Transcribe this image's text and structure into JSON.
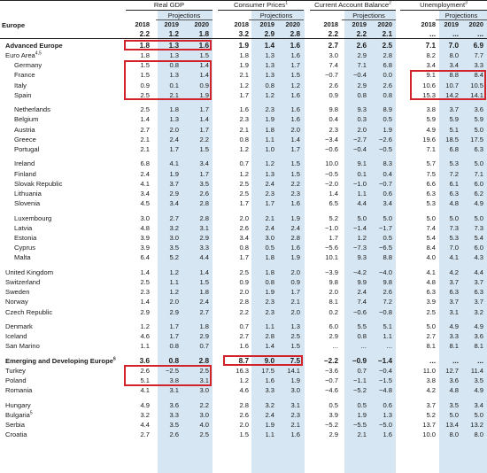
{
  "groups": [
    {
      "key": "gdp",
      "title": "Real GDP",
      "sup": ""
    },
    {
      "key": "cpi",
      "title": "Consumer Prices",
      "sup": "1"
    },
    {
      "key": "cab",
      "title": "Current Account Balance",
      "sup": "2"
    },
    {
      "key": "unemp",
      "title": "Unemployment",
      "sup": "3"
    }
  ],
  "projections_label": "Projections",
  "years": [
    "2018",
    "2019",
    "2020"
  ],
  "header_row": {
    "label": "Europe",
    "values": [
      "2.2",
      "1.2",
      "1.8",
      "3.2",
      "2.9",
      "2.8",
      "2.2",
      "2.2",
      "2.1",
      "...",
      "...",
      "..."
    ]
  },
  "rows": [
    {
      "label": "Advanced Europe",
      "sup": "",
      "bold": true,
      "indent": 0,
      "values": [
        "1.8",
        "1.3",
        "1.6",
        "1.9",
        "1.4",
        "1.6",
        "2.7",
        "2.6",
        "2.5",
        "7.1",
        "7.0",
        "6.9"
      ]
    },
    {
      "label": "Euro Area",
      "sup": "4,5",
      "indent": 0,
      "values": [
        "1.8",
        "1.3",
        "1.5",
        "1.8",
        "1.3",
        "1.6",
        "3.0",
        "2.9",
        "2.8",
        "8.2",
        "8.0",
        "7.7"
      ]
    },
    {
      "label": "Germany",
      "sup": "",
      "indent": 1,
      "values": [
        "1.5",
        "0.8",
        "1.4",
        "1.9",
        "1.3",
        "1.7",
        "7.4",
        "7.1",
        "6.8",
        "3.4",
        "3.4",
        "3.3"
      ]
    },
    {
      "label": "France",
      "sup": "",
      "indent": 1,
      "values": [
        "1.5",
        "1.3",
        "1.4",
        "2.1",
        "1.3",
        "1.5",
        "−0.7",
        "−0.4",
        "0.0",
        "9.1",
        "8.8",
        "8.4"
      ]
    },
    {
      "label": "Italy",
      "sup": "",
      "indent": 1,
      "values": [
        "0.9",
        "0.1",
        "0.9",
        "1.2",
        "0.8",
        "1.2",
        "2.6",
        "2.9",
        "2.6",
        "10.6",
        "10.7",
        "10.5"
      ]
    },
    {
      "label": "Spain",
      "sup": "",
      "indent": 1,
      "values": [
        "2.5",
        "2.1",
        "1.9",
        "1.7",
        "1.2",
        "1.6",
        "0.9",
        "0.8",
        "0.8",
        "15.3",
        "14.2",
        "14.1"
      ]
    },
    {
      "gap": true
    },
    {
      "label": "Netherlands",
      "sup": "",
      "indent": 1,
      "values": [
        "2.5",
        "1.8",
        "1.7",
        "1.6",
        "2.3",
        "1.6",
        "9.8",
        "9.3",
        "8.9",
        "3.8",
        "3.7",
        "3.6"
      ]
    },
    {
      "label": "Belgium",
      "sup": "",
      "indent": 1,
      "values": [
        "1.4",
        "1.3",
        "1.4",
        "2.3",
        "1.9",
        "1.6",
        "0.4",
        "0.3",
        "0.5",
        "5.9",
        "5.9",
        "5.9"
      ]
    },
    {
      "label": "Austria",
      "sup": "",
      "indent": 1,
      "values": [
        "2.7",
        "2.0",
        "1.7",
        "2.1",
        "1.8",
        "2.0",
        "2.3",
        "2.0",
        "1.9",
        "4.9",
        "5.1",
        "5.0"
      ]
    },
    {
      "label": "Greece",
      "sup": "",
      "indent": 1,
      "values": [
        "2.1",
        "2.4",
        "2.2",
        "0.8",
        "1.1",
        "1.4",
        "−3.4",
        "−2.7",
        "−2.6",
        "19.6",
        "18.5",
        "17.5"
      ]
    },
    {
      "label": "Portugal",
      "sup": "",
      "indent": 1,
      "values": [
        "2.1",
        "1.7",
        "1.5",
        "1.2",
        "1.0",
        "1.7",
        "−0.6",
        "−0.4",
        "−0.5",
        "7.1",
        "6.8",
        "6.3"
      ]
    },
    {
      "gap": true
    },
    {
      "label": "Ireland",
      "sup": "",
      "indent": 1,
      "values": [
        "6.8",
        "4.1",
        "3.4",
        "0.7",
        "1.2",
        "1.5",
        "10.0",
        "9.1",
        "8.3",
        "5.7",
        "5.3",
        "5.0"
      ]
    },
    {
      "label": "Finland",
      "sup": "",
      "indent": 1,
      "values": [
        "2.4",
        "1.9",
        "1.7",
        "1.2",
        "1.3",
        "1.5",
        "−0.5",
        "0.1",
        "0.4",
        "7.5",
        "7.2",
        "7.1"
      ]
    },
    {
      "label": "Slovak Republic",
      "sup": "",
      "indent": 1,
      "values": [
        "4.1",
        "3.7",
        "3.5",
        "2.5",
        "2.4",
        "2.2",
        "−2.0",
        "−1.0",
        "−0.7",
        "6.6",
        "6.1",
        "6.0"
      ]
    },
    {
      "label": "Lithuania",
      "sup": "",
      "indent": 1,
      "values": [
        "3.4",
        "2.9",
        "2.6",
        "2.5",
        "2.3",
        "2.3",
        "1.4",
        "1.1",
        "0.6",
        "6.3",
        "6.3",
        "6.2"
      ]
    },
    {
      "label": "Slovenia",
      "sup": "",
      "indent": 1,
      "values": [
        "4.5",
        "3.4",
        "2.8",
        "1.7",
        "1.7",
        "1.6",
        "6.5",
        "4.4",
        "3.4",
        "5.3",
        "4.8",
        "4.9"
      ]
    },
    {
      "gap": true
    },
    {
      "label": "Luxembourg",
      "sup": "",
      "indent": 1,
      "values": [
        "3.0",
        "2.7",
        "2.8",
        "2.0",
        "2.1",
        "1.9",
        "5.2",
        "5.0",
        "5.0",
        "5.0",
        "5.0",
        "5.0"
      ]
    },
    {
      "label": "Latvia",
      "sup": "",
      "indent": 1,
      "values": [
        "4.8",
        "3.2",
        "3.1",
        "2.6",
        "2.4",
        "2.4",
        "−1.0",
        "−1.4",
        "−1.7",
        "7.4",
        "7.3",
        "7.3"
      ]
    },
    {
      "label": "Estonia",
      "sup": "",
      "indent": 1,
      "values": [
        "3.9",
        "3.0",
        "2.9",
        "3.4",
        "3.0",
        "2.8",
        "1.7",
        "1.2",
        "0.5",
        "5.4",
        "5.3",
        "5.4"
      ]
    },
    {
      "label": "Cyprus",
      "sup": "",
      "indent": 1,
      "values": [
        "3.9",
        "3.5",
        "3.3",
        "0.8",
        "0.5",
        "1.6",
        "−5.6",
        "−7.3",
        "−6.5",
        "8.4",
        "7.0",
        "6.0"
      ]
    },
    {
      "label": "Malta",
      "sup": "",
      "indent": 1,
      "values": [
        "6.4",
        "5.2",
        "4.4",
        "1.7",
        "1.8",
        "1.9",
        "10.1",
        "9.3",
        "8.8",
        "4.0",
        "4.1",
        "4.3"
      ]
    },
    {
      "gap": true
    },
    {
      "label": "United Kingdom",
      "sup": "",
      "indent": 0,
      "values": [
        "1.4",
        "1.2",
        "1.4",
        "2.5",
        "1.8",
        "2.0",
        "−3.9",
        "−4.2",
        "−4.0",
        "4.1",
        "4.2",
        "4.4"
      ]
    },
    {
      "label": "Switzerland",
      "sup": "",
      "indent": 0,
      "values": [
        "2.5",
        "1.1",
        "1.5",
        "0.9",
        "0.8",
        "0.9",
        "9.8",
        "9.9",
        "9.8",
        "4.8",
        "3.7",
        "3.7"
      ]
    },
    {
      "label": "Sweden",
      "sup": "",
      "indent": 0,
      "values": [
        "2.3",
        "1.2",
        "1.8",
        "2.0",
        "1.9",
        "1.7",
        "2.0",
        "2.4",
        "2.6",
        "6.3",
        "6.3",
        "6.3"
      ]
    },
    {
      "label": "Norway",
      "sup": "",
      "indent": 0,
      "values": [
        "1.4",
        "2.0",
        "2.4",
        "2.8",
        "2.3",
        "2.1",
        "8.1",
        "7.4",
        "7.2",
        "3.9",
        "3.7",
        "3.7"
      ]
    },
    {
      "label": "Czech Republic",
      "sup": "",
      "indent": 0,
      "values": [
        "2.9",
        "2.9",
        "2.7",
        "2.2",
        "2.3",
        "2.0",
        "0.2",
        "−0.6",
        "−0.8",
        "2.5",
        "3.1",
        "3.2"
      ]
    },
    {
      "gap": true
    },
    {
      "label": "Denmark",
      "sup": "",
      "indent": 0,
      "values": [
        "1.2",
        "1.7",
        "1.8",
        "0.7",
        "1.1",
        "1.3",
        "6.0",
        "5.5",
        "5.1",
        "5.0",
        "4.9",
        "4.9"
      ]
    },
    {
      "label": "Iceland",
      "sup": "",
      "indent": 0,
      "values": [
        "4.6",
        "1.7",
        "2.9",
        "2.7",
        "2.8",
        "2.5",
        "2.9",
        "0.8",
        "1.1",
        "2.7",
        "3.3",
        "3.6"
      ]
    },
    {
      "label": "San Marino",
      "sup": "",
      "indent": 0,
      "values": [
        "1.1",
        "0.8",
        "0.7",
        "1.6",
        "1.4",
        "1.5",
        "...",
        "...",
        "...",
        "8.1",
        "8.1",
        "8.1"
      ]
    },
    {
      "gap": true
    },
    {
      "label": "Emerging and Developing Europe",
      "sup": "6",
      "bold": true,
      "indent": 0,
      "values": [
        "3.6",
        "0.8",
        "2.8",
        "8.7",
        "9.0",
        "7.5",
        "−2.2",
        "−0.9",
        "−1.4",
        "...",
        "...",
        "..."
      ]
    },
    {
      "label": "Turkey",
      "sup": "",
      "indent": 0,
      "values": [
        "2.6",
        "−2.5",
        "2.5",
        "16.3",
        "17.5",
        "14.1",
        "−3.6",
        "0.7",
        "−0.4",
        "11.0",
        "12.7",
        "11.4"
      ]
    },
    {
      "label": "Poland",
      "sup": "",
      "indent": 0,
      "values": [
        "5.1",
        "3.8",
        "3.1",
        "1.2",
        "1.6",
        "1.9",
        "−0.7",
        "−1.1",
        "−1.5",
        "3.8",
        "3.6",
        "3.5"
      ]
    },
    {
      "label": "Romania",
      "sup": "",
      "indent": 0,
      "values": [
        "4.1",
        "3.1",
        "3.0",
        "4.6",
        "3.3",
        "3.0",
        "−4.6",
        "−5.2",
        "−4.8",
        "4.2",
        "4.8",
        "4.9"
      ]
    },
    {
      "gap": true
    },
    {
      "label": "Hungary",
      "sup": "",
      "indent": 0,
      "values": [
        "4.9",
        "3.6",
        "2.2",
        "2.8",
        "3.2",
        "3.1",
        "0.5",
        "0.5",
        "0.6",
        "3.7",
        "3.5",
        "3.4"
      ]
    },
    {
      "label": "Bulgaria",
      "sup": "5",
      "indent": 0,
      "values": [
        "3.2",
        "3.3",
        "3.0",
        "2.6",
        "2.4",
        "2.3",
        "3.9",
        "1.9",
        "1.3",
        "5.2",
        "5.0",
        "5.0"
      ]
    },
    {
      "label": "Serbia",
      "sup": "",
      "indent": 0,
      "values": [
        "4.4",
        "3.5",
        "4.0",
        "2.0",
        "1.9",
        "2.1",
        "−5.2",
        "−5.5",
        "−5.0",
        "13.7",
        "13.4",
        "13.2"
      ]
    },
    {
      "label": "Croatia",
      "sup": "",
      "indent": 0,
      "values": [
        "2.7",
        "2.6",
        "2.5",
        "1.5",
        "1.1",
        "1.6",
        "2.9",
        "2.1",
        "1.6",
        "10.0",
        "8.0",
        "8.0"
      ]
    }
  ],
  "colors": {
    "projection_band": "#d6e6f2",
    "highlight": "#d2232a",
    "text": "#1a1a1a"
  }
}
